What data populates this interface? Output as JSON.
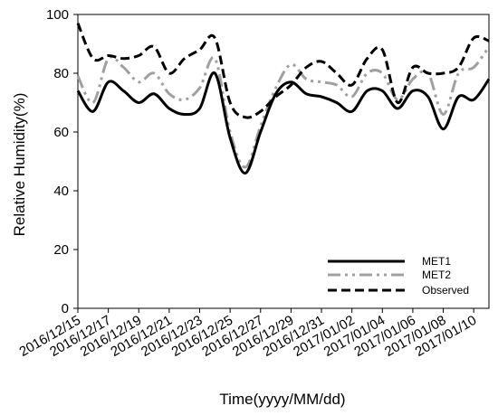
{
  "chart_data": {
    "type": "line",
    "xlabel": "Time(yyyy/MM/dd)",
    "ylabel": "Relative Humidity(%)",
    "ylim": [
      0,
      100
    ],
    "xlim": [
      "2016/12/15",
      "2017/01/11"
    ],
    "yticks": [
      0,
      20,
      40,
      60,
      80,
      100
    ],
    "xtick_labels": [
      "2016/12/15",
      "2016/12/17",
      "2016/12/19",
      "2016/12/21",
      "2016/12/23",
      "2016/12/25",
      "2016/12/27",
      "2016/12/29",
      "2016/12/31",
      "2017/01/02",
      "2017/01/04",
      "2017/01/06",
      "2017/01/08",
      "2017/01/10"
    ],
    "grid": false,
    "legend_position": "bottom-right",
    "x": [
      "2016/12/15",
      "2016/12/16",
      "2016/12/17",
      "2016/12/18",
      "2016/12/19",
      "2016/12/20",
      "2016/12/21",
      "2016/12/22",
      "2016/12/23",
      "2016/12/24",
      "2016/12/25",
      "2016/12/26",
      "2016/12/27",
      "2016/12/28",
      "2016/12/29",
      "2016/12/30",
      "2016/12/31",
      "2017/01/01",
      "2017/01/02",
      "2017/01/03",
      "2017/01/04",
      "2017/01/05",
      "2017/01/06",
      "2017/01/07",
      "2017/01/08",
      "2017/01/09",
      "2017/01/10",
      "2017/01/11"
    ],
    "series": [
      {
        "name": "MET1",
        "color": "#000000",
        "style": "solid",
        "values": [
          74,
          67,
          77,
          74,
          70,
          73,
          68,
          66,
          68,
          80,
          58,
          46,
          60,
          73,
          77,
          73,
          72,
          70,
          67,
          74,
          74,
          68,
          74,
          72,
          61,
          72,
          71,
          78
        ]
      },
      {
        "name": "MET2",
        "color": "#a0a0a0",
        "style": "dash-dot-dot",
        "values": [
          79,
          70,
          85,
          82,
          77,
          80,
          73,
          71,
          75,
          85,
          60,
          48,
          62,
          75,
          83,
          78,
          77,
          76,
          72,
          80,
          80,
          71,
          78,
          80,
          66,
          80,
          82,
          89
        ]
      },
      {
        "name": "Observed",
        "color": "#000000",
        "style": "dashed",
        "values": [
          97,
          85,
          86,
          85,
          86,
          89,
          80,
          85,
          88,
          92,
          70,
          65,
          67,
          72,
          76,
          82,
          84,
          80,
          76,
          85,
          88,
          70,
          82,
          80,
          80,
          82,
          92,
          91
        ]
      }
    ]
  }
}
